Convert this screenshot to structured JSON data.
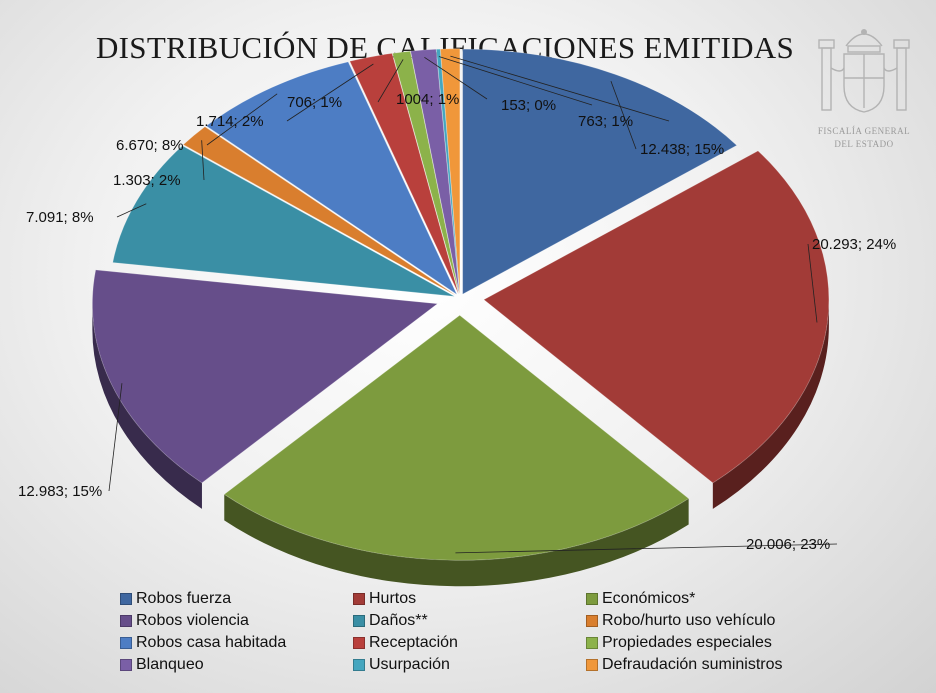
{
  "chart_data": {
    "type": "pie",
    "title": "DISTRIBUCIÓN DE CALIFICACIONES EMITIDAS",
    "categories": [
      "Robos fuerza",
      "Hurtos",
      "Económicos*",
      "Robos violencia",
      "Daños**",
      "Robo/hurto uso vehículo",
      "Robos casa habitada",
      "Receptación",
      "Propiedades especiales",
      "Blanqueo",
      "Usurpación",
      "Defraudación suministros"
    ],
    "values": [
      12438,
      20293,
      20006,
      12983,
      7091,
      1303,
      6670,
      1714,
      706,
      1004,
      153,
      763
    ],
    "data_labels": [
      "12.438; 15%",
      "20.293; 24%",
      "20.006; 23%",
      "12.983; 15%",
      "7.091; 8%",
      "1.303; 2%",
      "6.670; 8%",
      "1.714; 2%",
      "706; 1%",
      "1004; 1%",
      "153; 0%",
      "763; 1%"
    ],
    "colors": [
      "#3F67A0",
      "#A23B37",
      "#7D9B3E",
      "#664E8A",
      "#3A8FA5",
      "#D97E2E",
      "#4D7DC4",
      "#B9403C",
      "#8CB24A",
      "#7A5FA6",
      "#45A6BF",
      "#F0973A"
    ],
    "legend_position": "bottom",
    "is_3d": true
  },
  "logo": {
    "line1": "FISCALÍA GENERAL",
    "line2": "DEL ESTADO"
  }
}
